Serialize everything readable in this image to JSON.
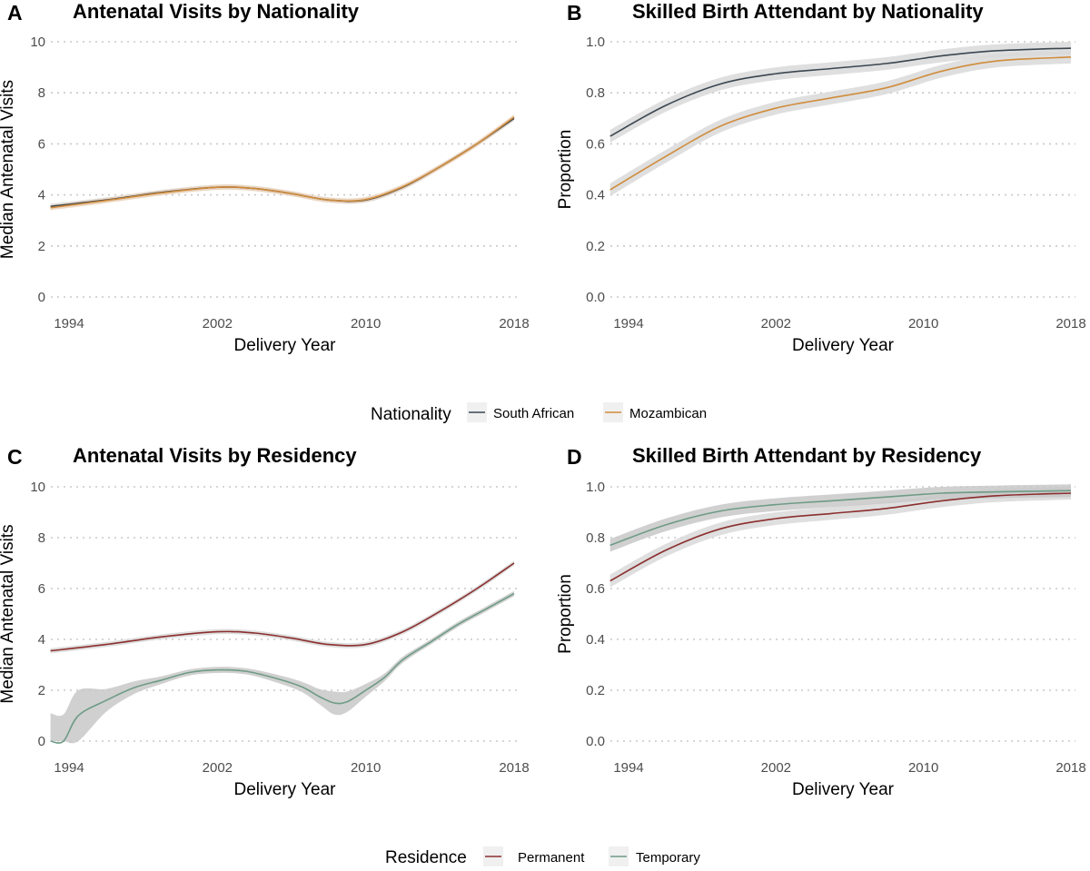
{
  "chart_data": [
    {
      "panel": "A",
      "type": "line",
      "title": "Antenatal Visits by Nationality",
      "xlabel": "Delivery Year",
      "ylabel": "Median Antenatal Visits",
      "xlim": [
        1993,
        2018
      ],
      "ylim": [
        0,
        10
      ],
      "xticks": [
        1994,
        2002,
        2010,
        2018
      ],
      "yticks": [
        0,
        2,
        4,
        6,
        8,
        10
      ],
      "ytick_labels": [
        "0",
        "2",
        "4",
        "6",
        "8",
        "10"
      ],
      "grid": "horizontal dotted",
      "series": [
        {
          "name": "South African",
          "color": "#3b4650",
          "ci_color": "#d9d9d9",
          "x": [
            1993,
            1996,
            1999,
            2002,
            2004,
            2006,
            2008,
            2010,
            2012,
            2014,
            2016,
            2018
          ],
          "y": [
            3.55,
            3.8,
            4.1,
            4.3,
            4.25,
            4.05,
            3.8,
            3.8,
            4.3,
            5.1,
            6.0,
            7.0
          ],
          "ci": 0.1
        },
        {
          "name": "Mozambican",
          "color": "#d08c3c",
          "ci_color": "#ecd5bd",
          "x": [
            1993,
            1996,
            1999,
            2002,
            2004,
            2006,
            2008,
            2010,
            2012,
            2014,
            2016,
            2018
          ],
          "y": [
            3.5,
            3.78,
            4.08,
            4.3,
            4.25,
            4.05,
            3.8,
            3.82,
            4.32,
            5.1,
            6.0,
            7.05
          ],
          "ci": 0.1
        }
      ]
    },
    {
      "panel": "B",
      "type": "line",
      "title": "Skilled Birth Attendant by Nationality",
      "xlabel": "Delivery Year",
      "ylabel": "Proportion",
      "xlim": [
        1993,
        2018
      ],
      "ylim": [
        0,
        1
      ],
      "xticks": [
        1994,
        2002,
        2010,
        2018
      ],
      "yticks": [
        0,
        0.2,
        0.4,
        0.6,
        0.8,
        1
      ],
      "ytick_labels": [
        "0.0",
        "0.2",
        "0.4",
        "0.6",
        "0.8",
        "1.0"
      ],
      "grid": "horizontal dotted",
      "series": [
        {
          "name": "South African",
          "color": "#3b4650",
          "ci_color": "#d9d9d9",
          "x": [
            1993,
            1996,
            1999,
            2002,
            2005,
            2008,
            2011,
            2014,
            2018
          ],
          "y": [
            0.63,
            0.75,
            0.835,
            0.875,
            0.895,
            0.915,
            0.945,
            0.965,
            0.975
          ],
          "ci": 0.025
        },
        {
          "name": "Mozambican",
          "color": "#d08c3c",
          "ci_color": "#d9d9d9",
          "x": [
            1993,
            1996,
            1999,
            2002,
            2005,
            2008,
            2011,
            2014,
            2018
          ],
          "y": [
            0.42,
            0.55,
            0.67,
            0.74,
            0.78,
            0.82,
            0.885,
            0.925,
            0.94
          ],
          "ci": 0.025
        }
      ]
    },
    {
      "panel": "C",
      "type": "line",
      "title": "Antenatal Visits by Residency",
      "xlabel": "Delivery Year",
      "ylabel": "Median Antenatal Visits",
      "xlim": [
        1993,
        2018
      ],
      "ylim": [
        0,
        10
      ],
      "xticks": [
        1994,
        2002,
        2010,
        2018
      ],
      "yticks": [
        0,
        2,
        4,
        6,
        8,
        10
      ],
      "ytick_labels": [
        "0",
        "2",
        "4",
        "6",
        "8",
        "10"
      ],
      "grid": "horizontal dotted",
      "series": [
        {
          "name": "Permanent",
          "color": "#8b2e2e",
          "ci_color": "#d9d9d9",
          "x": [
            1993,
            1996,
            1999,
            2002,
            2004,
            2006,
            2008,
            2010,
            2012,
            2014,
            2016,
            2018
          ],
          "y": [
            3.55,
            3.8,
            4.1,
            4.3,
            4.25,
            4.05,
            3.8,
            3.8,
            4.3,
            5.1,
            6.0,
            7.0
          ],
          "ci": 0.1
        },
        {
          "name": "Temporary",
          "color": "#6e9b86",
          "ci_color": "#c8c8c8",
          "x": [
            1993,
            1993.7,
            1994.5,
            1996,
            1997.5,
            1999,
            2000.5,
            2002,
            2003.5,
            2005,
            2006.5,
            2007.5,
            2008.3,
            2009,
            2010,
            2011,
            2012,
            2013.5,
            2015,
            2016.5,
            2018
          ],
          "y": [
            0,
            0,
            1.0,
            1.6,
            2.1,
            2.4,
            2.7,
            2.8,
            2.75,
            2.5,
            2.15,
            1.75,
            1.5,
            1.55,
            2.0,
            2.5,
            3.2,
            3.9,
            4.6,
            5.2,
            5.8
          ],
          "ci": [
            1.1,
            1.05,
            1.0,
            0.45,
            0.25,
            0.15,
            0.12,
            0.12,
            0.12,
            0.15,
            0.2,
            0.3,
            0.45,
            0.4,
            0.25,
            0.15,
            0.12,
            0.1,
            0.1,
            0.1,
            0.1
          ]
        }
      ]
    },
    {
      "panel": "D",
      "type": "line",
      "title": "Skilled Birth Attendant by Residency",
      "xlabel": "Delivery Year",
      "ylabel": "Proportion",
      "xlim": [
        1993,
        2018
      ],
      "ylim": [
        0,
        1
      ],
      "xticks": [
        1994,
        2002,
        2010,
        2018
      ],
      "yticks": [
        0,
        0.2,
        0.4,
        0.6,
        0.8,
        1
      ],
      "ytick_labels": [
        "0.0",
        "0.2",
        "0.4",
        "0.6",
        "0.8",
        "1.0"
      ],
      "grid": "horizontal dotted",
      "series": [
        {
          "name": "Permanent",
          "color": "#8b2e2e",
          "ci_color": "#d9d9d9",
          "x": [
            1993,
            1996,
            1999,
            2002,
            2005,
            2008,
            2011,
            2014,
            2018
          ],
          "y": [
            0.63,
            0.75,
            0.835,
            0.875,
            0.895,
            0.915,
            0.945,
            0.965,
            0.975
          ],
          "ci": 0.025
        },
        {
          "name": "Temporary",
          "color": "#6e9b86",
          "ci_color": "#c8c8c8",
          "x": [
            1993,
            1996,
            1999,
            2002,
            2005,
            2008,
            2011,
            2014,
            2018
          ],
          "y": [
            0.77,
            0.85,
            0.905,
            0.93,
            0.945,
            0.96,
            0.975,
            0.98,
            0.985
          ],
          "ci": 0.025
        }
      ]
    }
  ],
  "panels": [
    {
      "letter": "A",
      "title": "Antenatal Visits by Nationality"
    },
    {
      "letter": "B",
      "title": "Skilled Birth Attendant by Nationality"
    },
    {
      "letter": "C",
      "title": "Antenatal Visits by Residency"
    },
    {
      "letter": "D",
      "title": "Skilled Birth Attendant by Residency"
    }
  ],
  "legends": [
    {
      "title": "Nationality",
      "items": [
        {
          "label": "South African",
          "color": "#3b4650"
        },
        {
          "label": "Mozambican",
          "color": "#d08c3c"
        }
      ]
    },
    {
      "title": "Residence",
      "items": [
        {
          "label": "Permanent",
          "color": "#8b2e2e"
        },
        {
          "label": "Temporary",
          "color": "#6e9b86"
        }
      ]
    }
  ]
}
